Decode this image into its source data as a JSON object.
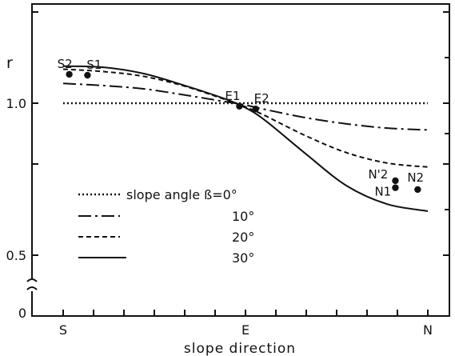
{
  "chart_data": {
    "type": "line",
    "xlabel": "slope direction",
    "ylabel": "r",
    "x_tick_labels": [
      "S",
      "E",
      "N"
    ],
    "y_tick_labels": [
      "0",
      "0.5",
      "1.0"
    ],
    "xlim": [
      0,
      180
    ],
    "ylim": [
      0.375,
      1.3
    ],
    "series": [
      {
        "name": "slope angle ß=0°",
        "style": "dotted",
        "x": [
          0,
          180
        ],
        "y": [
          1.0,
          1.0
        ]
      },
      {
        "name": "10°",
        "style": "dashdot",
        "x": [
          0,
          20,
          40,
          60,
          80,
          90,
          100,
          120,
          140,
          160,
          180
        ],
        "y": [
          1.065,
          1.058,
          1.047,
          1.027,
          1.005,
          0.994,
          0.979,
          0.952,
          0.932,
          0.918,
          0.912
        ]
      },
      {
        "name": "20°",
        "style": "dashed",
        "x": [
          0,
          20,
          40,
          60,
          80,
          90,
          100,
          120,
          140,
          160,
          180
        ],
        "y": [
          1.112,
          1.104,
          1.088,
          1.056,
          1.012,
          0.988,
          0.958,
          0.892,
          0.837,
          0.803,
          0.79
        ]
      },
      {
        "name": "30°",
        "style": "solid",
        "x": [
          0,
          20,
          40,
          60,
          80,
          90,
          100,
          120,
          140,
          160,
          180
        ],
        "y": [
          1.122,
          1.118,
          1.097,
          1.058,
          1.014,
          0.985,
          0.942,
          0.832,
          0.728,
          0.668,
          0.645
        ]
      }
    ],
    "points": [
      {
        "label": "S2",
        "x": 3,
        "y": 1.095
      },
      {
        "label": "S1",
        "x": 12,
        "y": 1.092
      },
      {
        "label": "E1",
        "x": 87,
        "y": 0.99
      },
      {
        "label": "E2",
        "x": 95,
        "y": 0.981
      },
      {
        "label": "N'2",
        "x": 164,
        "y": 0.745
      },
      {
        "label": "N1",
        "x": 164,
        "y": 0.722
      },
      {
        "label": "N2",
        "x": 175,
        "y": 0.716
      }
    ],
    "axis_break": "y between 0 and 0.5",
    "legend_position": "lower-left",
    "grid": false
  }
}
